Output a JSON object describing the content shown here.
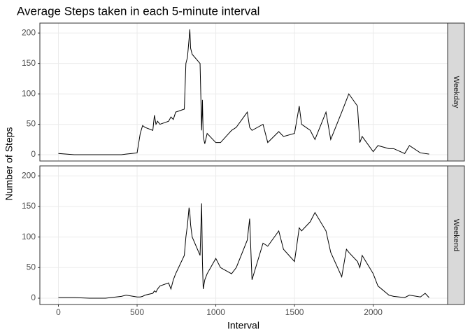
{
  "chart_data": {
    "type": "line",
    "title": "Average Steps taken in each 5-minute interval",
    "xlabel": "Interval",
    "ylabel": "Number of Steps",
    "x": [
      0,
      100,
      200,
      300,
      400,
      430,
      500,
      520,
      535,
      550,
      600,
      610,
      620,
      630,
      645,
      700,
      715,
      730,
      745,
      800,
      810,
      820,
      830,
      835,
      840,
      850,
      900,
      910,
      915,
      920,
      930,
      945,
      1000,
      1030,
      1100,
      1130,
      1200,
      1215,
      1230,
      1300,
      1330,
      1400,
      1430,
      1500,
      1530,
      1545,
      1600,
      1630,
      1700,
      1730,
      1800,
      1830,
      1845,
      1900,
      1915,
      1930,
      2000,
      2030,
      2100,
      2130,
      2200,
      2230,
      2300,
      2330,
      2355
    ],
    "series": [
      {
        "name": "Weekday",
        "color": "#000000",
        "values": [
          2,
          0,
          0,
          0,
          0,
          1,
          3,
          35,
          48,
          45,
          40,
          65,
          50,
          55,
          50,
          55,
          62,
          58,
          70,
          75,
          150,
          160,
          190,
          206,
          175,
          165,
          150,
          40,
          90,
          30,
          18,
          35,
          20,
          20,
          40,
          45,
          70,
          45,
          40,
          50,
          20,
          38,
          30,
          35,
          80,
          50,
          40,
          25,
          70,
          25,
          70,
          90,
          100,
          80,
          20,
          30,
          5,
          15,
          10,
          10,
          2,
          15,
          3,
          2,
          1
        ]
      },
      {
        "name": "Weekend",
        "color": "#000000",
        "values": [
          1,
          1,
          0,
          0,
          3,
          5,
          2,
          2,
          3,
          5,
          8,
          12,
          10,
          15,
          20,
          25,
          15,
          30,
          40,
          70,
          100,
          120,
          148,
          140,
          120,
          100,
          70,
          155,
          60,
          15,
          30,
          40,
          65,
          50,
          40,
          50,
          95,
          130,
          30,
          90,
          85,
          110,
          80,
          60,
          115,
          110,
          125,
          140,
          110,
          75,
          35,
          80,
          75,
          60,
          50,
          70,
          40,
          20,
          5,
          3,
          1,
          5,
          2,
          8,
          1
        ]
      }
    ],
    "xlim": [
      -117.75,
      2472.75
    ],
    "ylim": [
      -10.3,
      216.3
    ],
    "xticks": [
      0,
      500,
      1000,
      1500,
      2000
    ],
    "yticks": [
      0,
      50,
      100,
      150,
      200
    ],
    "grid": true
  }
}
